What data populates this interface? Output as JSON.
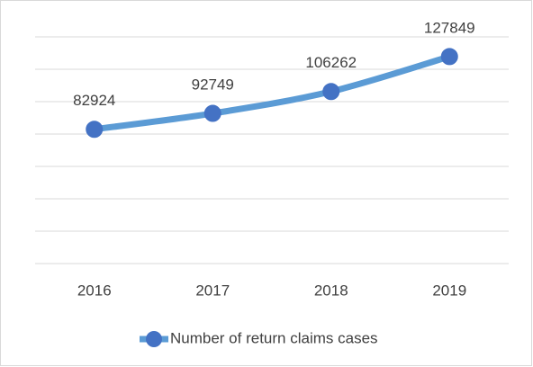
{
  "chart_data": {
    "type": "line",
    "categories": [
      "2016",
      "2017",
      "2018",
      "2019"
    ],
    "series": [
      {
        "name": "Number of return claims cases",
        "color": "#4472c4",
        "line_color": "#5b9bd5",
        "values": [
          82924,
          92749,
          106262,
          127849
        ]
      }
    ],
    "ylim": [
      0,
      140000
    ],
    "yticks": [
      0,
      20000,
      40000,
      60000,
      80000,
      100000,
      120000,
      140000
    ],
    "grid": true,
    "legend": "bottom"
  }
}
